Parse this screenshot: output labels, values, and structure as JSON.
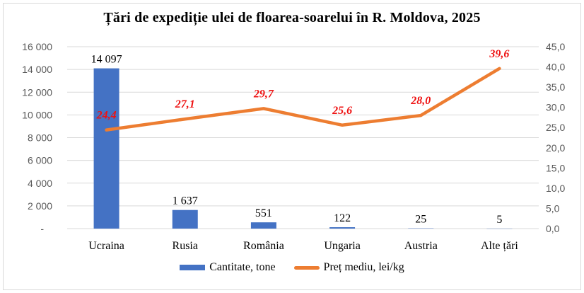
{
  "chart_data": {
    "type": "bar+line combo",
    "title": "Țări de expediție ulei de floarea-soarelui în R. Moldova, 2025",
    "categories": [
      "Ucraina",
      "Rusia",
      "România",
      "Ungaria",
      "Austria",
      "Alte țări"
    ],
    "series": [
      {
        "name": "Cantitate, tone",
        "type": "bar",
        "axis": "left",
        "color": "#4472C4",
        "values": [
          14097,
          1637,
          551,
          122,
          25,
          5
        ],
        "value_labels": [
          "14 097",
          "1 637",
          "551",
          "122",
          "25",
          "5"
        ],
        "label_color": "#000000"
      },
      {
        "name": "Preț mediu, lei/kg",
        "type": "line",
        "axis": "right",
        "color": "#ED7D31",
        "values": [
          24.4,
          27.1,
          29.7,
          25.6,
          28.0,
          39.6
        ],
        "value_labels": [
          "24,4",
          "27,1",
          "29,7",
          "25,6",
          "28,0",
          "39,6"
        ],
        "label_color": "#EE1111"
      }
    ],
    "axis_left": {
      "min": 0,
      "max": 16000,
      "step": 2000,
      "tick_labels": [
        "-",
        "2 000",
        "4 000",
        "6 000",
        "8 000",
        "10 000",
        "12 000",
        "14 000",
        "16 000"
      ]
    },
    "axis_right": {
      "min": 0,
      "max": 45,
      "step": 5,
      "tick_labels": [
        "0,0",
        "5,0",
        "10,0",
        "15,0",
        "20,0",
        "25,0",
        "30,0",
        "35,0",
        "40,0",
        "45,0"
      ]
    },
    "grid": true,
    "legend_position": "bottom",
    "colors": {
      "tick_text": "#595959",
      "gridline": "#D9D9D9",
      "frame_border": "#D9D9D9",
      "background": "#FFFFFF"
    }
  }
}
